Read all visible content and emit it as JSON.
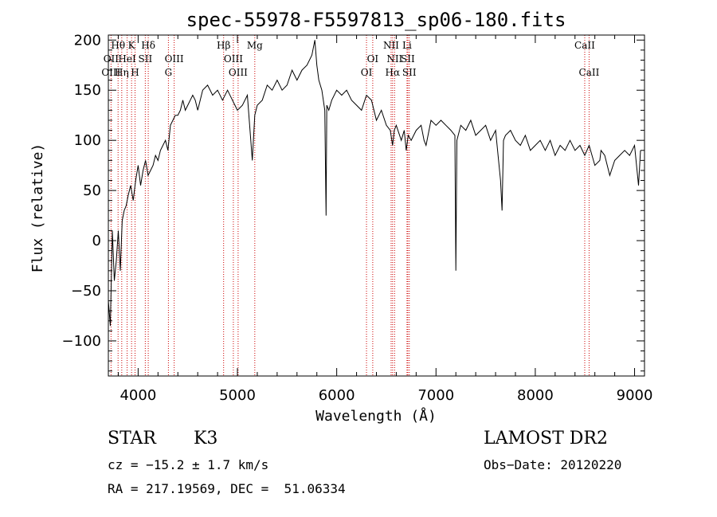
{
  "chart_data": {
    "type": "line",
    "title": "spec-55978-F5597813_sp06-180.fits",
    "xlabel": "Wavelength (Å)",
    "ylabel": "Flux (relative)",
    "xlim": [
      3700,
      9100
    ],
    "ylim": [
      -135,
      205
    ],
    "xticks": [
      "4000",
      "5000",
      "6000",
      "7000",
      "8000",
      "9000"
    ],
    "yticks": [
      "−100",
      "−50",
      "0",
      "50",
      "100",
      "150",
      "200"
    ],
    "spectrum": {
      "x": [
        3700,
        3720,
        3740,
        3760,
        3780,
        3800,
        3820,
        3840,
        3860,
        3880,
        3900,
        3925,
        3950,
        3975,
        4000,
        4025,
        4050,
        4075,
        4100,
        4125,
        4150,
        4175,
        4200,
        4225,
        4250,
        4275,
        4300,
        4325,
        4350,
        4375,
        4400,
        4425,
        4450,
        4475,
        4500,
        4525,
        4550,
        4575,
        4600,
        4650,
        4700,
        4750,
        4800,
        4850,
        4900,
        4950,
        5000,
        5050,
        5100,
        5150,
        5175,
        5200,
        5250,
        5300,
        5350,
        5400,
        5450,
        5500,
        5550,
        5600,
        5650,
        5700,
        5750,
        5780,
        5800,
        5820,
        5850,
        5880,
        5893,
        5900,
        5920,
        5950,
        6000,
        6050,
        6100,
        6150,
        6200,
        6250,
        6300,
        6350,
        6400,
        6450,
        6500,
        6540,
        6563,
        6580,
        6600,
        6650,
        6680,
        6700,
        6720,
        6750,
        6800,
        6850,
        6880,
        6900,
        6950,
        7000,
        7050,
        7100,
        7150,
        7190,
        7200,
        7210,
        7250,
        7300,
        7350,
        7400,
        7450,
        7500,
        7550,
        7600,
        7650,
        7665,
        7680,
        7700,
        7750,
        7800,
        7850,
        7900,
        7950,
        8000,
        8050,
        8100,
        8150,
        8200,
        8250,
        8300,
        8350,
        8400,
        8450,
        8498,
        8542,
        8600,
        8650,
        8662,
        8700,
        8750,
        8800,
        8850,
        8900,
        8950,
        9000,
        9040,
        9060
      ],
      "y": [
        -60,
        -85,
        10,
        -40,
        -20,
        10,
        -30,
        20,
        30,
        35,
        45,
        55,
        40,
        60,
        75,
        55,
        70,
        80,
        65,
        70,
        75,
        85,
        80,
        90,
        95,
        100,
        90,
        115,
        120,
        125,
        125,
        130,
        140,
        130,
        135,
        140,
        145,
        140,
        130,
        150,
        155,
        145,
        150,
        140,
        150,
        140,
        130,
        135,
        145,
        80,
        125,
        135,
        140,
        155,
        150,
        160,
        150,
        155,
        170,
        160,
        170,
        175,
        185,
        200,
        175,
        160,
        150,
        130,
        25,
        135,
        130,
        140,
        150,
        145,
        150,
        140,
        135,
        130,
        145,
        140,
        120,
        130,
        115,
        110,
        95,
        110,
        115,
        100,
        110,
        90,
        105,
        100,
        110,
        115,
        100,
        95,
        120,
        115,
        120,
        115,
        110,
        105,
        -30,
        100,
        115,
        110,
        120,
        105,
        110,
        115,
        100,
        110,
        60,
        30,
        100,
        105,
        110,
        100,
        95,
        105,
        90,
        95,
        100,
        90,
        100,
        85,
        95,
        90,
        100,
        90,
        95,
        85,
        95,
        75,
        80,
        90,
        85,
        65,
        80,
        85,
        90,
        85,
        95,
        55,
        90
      ]
    },
    "line_markers": [
      {
        "label": "Hθ",
        "x": 3798,
        "row": 1
      },
      {
        "label": "OII",
        "x": 3727,
        "row": 2
      },
      {
        "label": "OIII",
        "x": 3727,
        "row": 3
      },
      {
        "label": "HeI",
        "x": 3889,
        "row": 2
      },
      {
        "label": "Hη",
        "x": 3835,
        "row": 3
      },
      {
        "label": "K",
        "x": 3934,
        "row": 1
      },
      {
        "label": "H",
        "x": 3969,
        "row": 3
      },
      {
        "label": "SII",
        "x": 4072,
        "row": 2
      },
      {
        "label": "Hδ",
        "x": 4102,
        "row": 1
      },
      {
        "label": "OIII",
        "x": 4363,
        "row": 2
      },
      {
        "label": "G",
        "x": 4305,
        "row": 3
      },
      {
        "label": "Hβ",
        "x": 4861,
        "row": 1
      },
      {
        "label": "OIII",
        "x": 4959,
        "row": 2
      },
      {
        "label": "OIII",
        "x": 5007,
        "row": 3
      },
      {
        "label": "Mg",
        "x": 5175,
        "row": 1
      },
      {
        "label": "OI",
        "x": 6363,
        "row": 2
      },
      {
        "label": "OI",
        "x": 6300,
        "row": 3
      },
      {
        "label": "NII",
        "x": 6548,
        "row": 1
      },
      {
        "label": "NII",
        "x": 6583,
        "row": 2
      },
      {
        "label": "Hα",
        "x": 6563,
        "row": 3
      },
      {
        "label": "Li",
        "x": 6708,
        "row": 1
      },
      {
        "label": "SII",
        "x": 6716,
        "row": 2
      },
      {
        "label": "SII",
        "x": 6731,
        "row": 3
      },
      {
        "label": "CaII",
        "x": 8498,
        "row": 1
      },
      {
        "label": "CaII",
        "x": 8542,
        "row": 3
      }
    ],
    "line_positions": [
      3727,
      3798,
      3835,
      3889,
      3934,
      3969,
      4072,
      4102,
      4305,
      4363,
      4861,
      4959,
      5007,
      5175,
      6300,
      6363,
      6548,
      6563,
      6583,
      6708,
      6716,
      6731,
      8498,
      8542
    ],
    "marker_color": "#cc0000",
    "spectrum_color": "#000000"
  },
  "info": {
    "class": "STAR",
    "subclass": "K3",
    "survey": "LAMOST DR2",
    "cz": "cz = −15.2 ± 1.7 km/s",
    "obs_date": "Obs−Date: 20120220",
    "radec": "RA = 217.19569, DEC =  51.06334"
  }
}
